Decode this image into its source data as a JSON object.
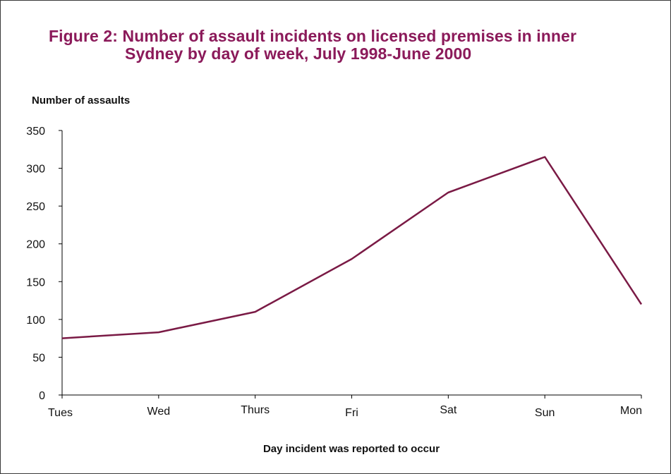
{
  "chart_data": {
    "type": "line",
    "title_line1": "Figure 2: Number of assault incidents on licensed premises in inner",
    "title_line2": "Sydney by day of week, July 1998-June 2000",
    "xlabel": "Day incident was reported to occur",
    "ylabel": "Number of assaults",
    "categories": [
      "Tues",
      "Wed",
      "Thurs",
      "Fri",
      "Sat",
      "Sun",
      "Mon"
    ],
    "values": [
      75,
      83,
      110,
      180,
      268,
      315,
      120
    ],
    "ylim": [
      0,
      350
    ],
    "yticks": [
      0,
      50,
      100,
      150,
      200,
      250,
      300,
      350
    ],
    "grid": false,
    "legend": "none",
    "line_color": "#7a1a45",
    "title_color": "#8b1a5a"
  }
}
